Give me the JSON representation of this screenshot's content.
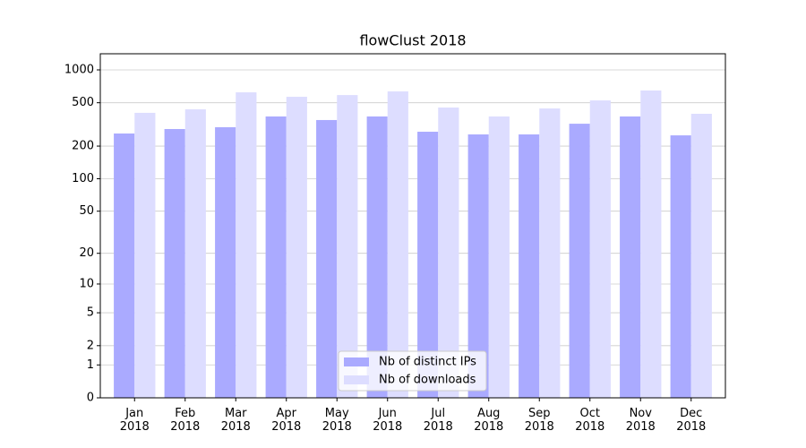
{
  "chart_data": {
    "type": "bar",
    "title": "flowClust 2018",
    "categories": [
      "Jan\n2018",
      "Feb\n2018",
      "Mar\n2018",
      "Apr\n2018",
      "May\n2018",
      "Jun\n2018",
      "Jul\n2018",
      "Aug\n2018",
      "Sep\n2018",
      "Oct\n2018",
      "Nov\n2018",
      "Dec\n2018"
    ],
    "series": [
      {
        "name": "Nb of distinct IPs",
        "color": "#aaaaff",
        "values": [
          261,
          287,
          298,
          374,
          347,
          374,
          271,
          256,
          256,
          321,
          374,
          251
        ]
      },
      {
        "name": "Nb of downloads",
        "color": "#ddddff",
        "values": [
          404,
          435,
          623,
          567,
          588,
          635,
          452,
          374,
          443,
          525,
          647,
          396
        ]
      }
    ],
    "yscale": "log1p",
    "ylim": [
      0,
      1405
    ],
    "yticks": [
      0,
      1,
      2,
      5,
      10,
      20,
      50,
      100,
      200,
      500,
      1000
    ],
    "grid": true,
    "legend": "lower center"
  }
}
